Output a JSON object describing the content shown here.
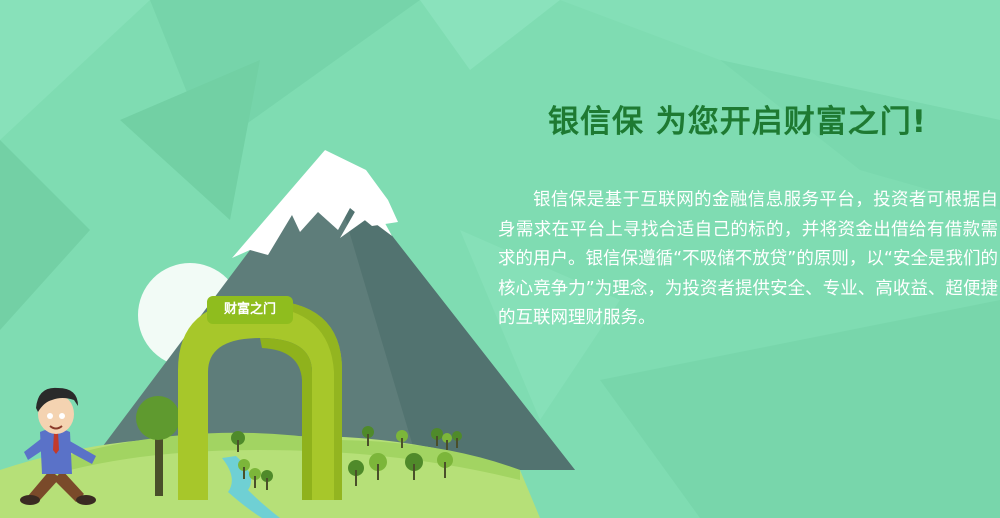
{
  "headline": "银信保 为您开启财富之门!",
  "paragraph": "银信保是基于互联网的金融信息服务平台，投资者可根据自身需求在平台上寻找合适自己的标的，并将资金出借给有借款需求的用户。银信保遵循“不吸储不放贷”的原则，以“安全是我们的核心竞争力”为理念，为投资者提供安全、专业、高收益、超便捷的互联网理财服务。",
  "gate_sign": "财富之门",
  "colors": {
    "background": "#7fdcb2",
    "headline": "#1e7a32",
    "mountain": "#5e7d7a",
    "snow": "#ffffff",
    "gate": "#a7c72a",
    "hill": "#b6e078"
  },
  "icons": [
    "mountain",
    "snow-cap",
    "sun",
    "gate-arch",
    "tree",
    "running-man",
    "river"
  ]
}
